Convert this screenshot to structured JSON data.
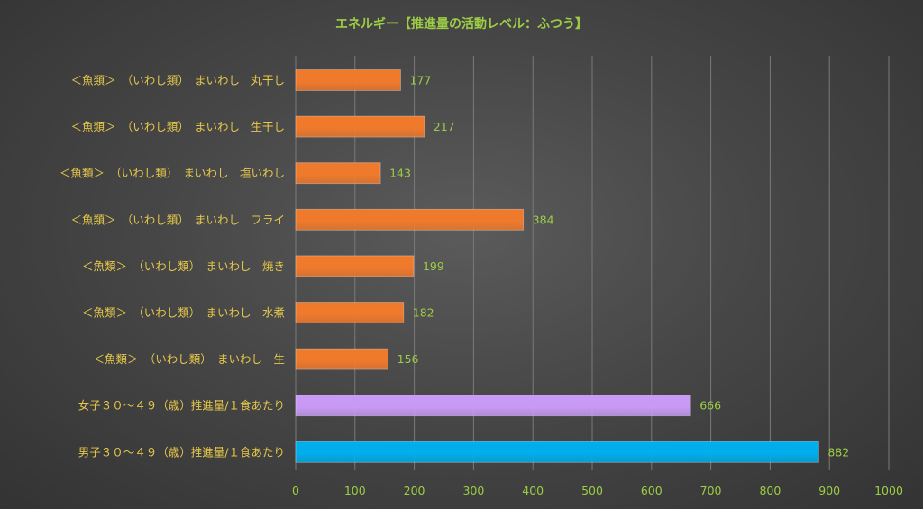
{
  "chart_data": {
    "type": "bar",
    "orientation": "horizontal",
    "title": "エネルギー【推進量の活動レベル：ふつう】",
    "xlabel": "",
    "ylabel": "",
    "xlim": [
      0,
      1000
    ],
    "xticks": [
      0,
      100,
      200,
      300,
      400,
      500,
      600,
      700,
      800,
      900,
      1000
    ],
    "grid": true,
    "legend": "none",
    "categories": [
      "＜魚類＞　（いわし類）　まいわし　丸干し",
      "＜魚類＞　（いわし類）　まいわし　生干し",
      "＜魚類＞　（いわし類）　まいわし　塩いわし",
      "＜魚類＞　（いわし類）　まいわし　フライ",
      "＜魚類＞　（いわし類）　まいわし　焼き",
      "＜魚類＞　（いわし類）　まいわし　水煮",
      "＜魚類＞　（いわし類）　まいわし　生",
      "女子３０～４９（歳）推進量/１食あたり",
      "男子３０～４９（歳）推進量/１食あたり"
    ],
    "values": [
      177,
      217,
      143,
      384,
      199,
      182,
      156,
      666,
      882
    ],
    "bar_colors": [
      "#f07a2c",
      "#f07a2c",
      "#f07a2c",
      "#f07a2c",
      "#f07a2c",
      "#f07a2c",
      "#f07a2c",
      "#c89af5",
      "#00aeec"
    ]
  },
  "colors": {
    "title": "#9ccd45",
    "category_label": "#e6c84a",
    "value_label": "#9ccd45",
    "tick_label": "#9ccd45",
    "gridline": "#7a7a7a"
  }
}
